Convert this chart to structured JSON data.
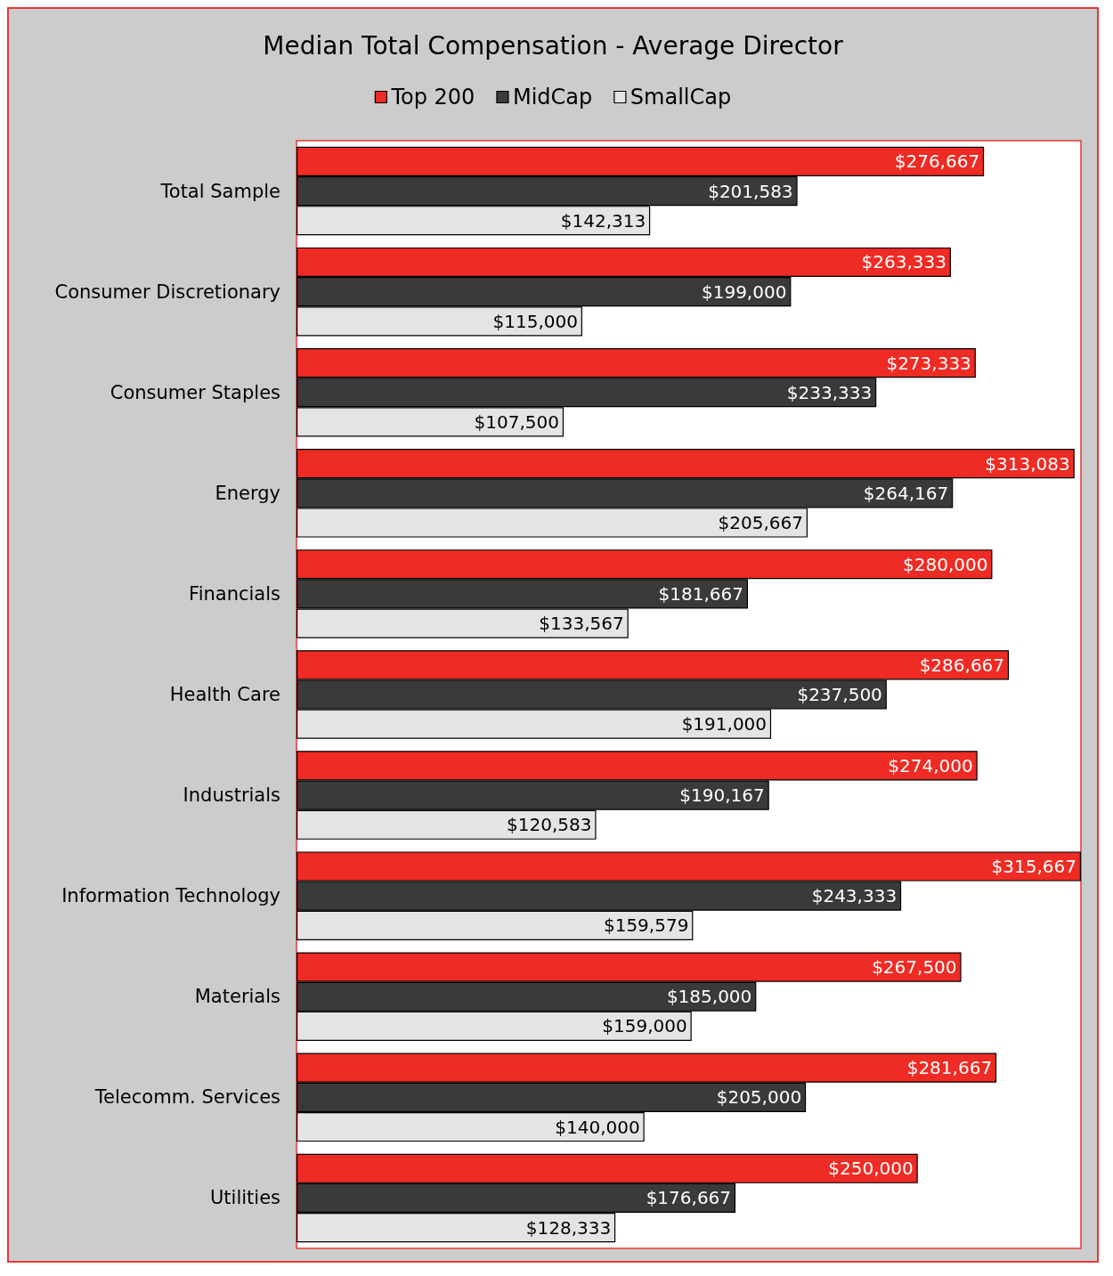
{
  "chart_data": {
    "type": "bar",
    "orientation": "horizontal",
    "title": "Median Total Compensation - Average Director",
    "categories": [
      "Total Sample",
      "Consumer Discretionary",
      "Consumer Staples",
      "Energy",
      "Financials",
      "Health Care",
      "Industrials",
      "Information Technology",
      "Materials",
      "Telecomm. Services",
      "Utilities"
    ],
    "series": [
      {
        "name": "Top 200",
        "color": "#ee2b24",
        "values": [
          276667,
          263333,
          273333,
          313083,
          280000,
          286667,
          274000,
          315667,
          267500,
          281667,
          250000
        ],
        "value_labels": [
          "$276,667",
          "$263,333",
          "$273,333",
          "$313,083",
          "$280,000",
          "$286,667",
          "$274,000",
          "$315,667",
          "$267,500",
          "$281,667",
          "$250,000"
        ]
      },
      {
        "name": "MidCap",
        "color": "#3a3a3a",
        "values": [
          201583,
          199000,
          233333,
          264167,
          181667,
          237500,
          190167,
          243333,
          185000,
          205000,
          176667
        ],
        "value_labels": [
          "$201,583",
          "$199,000",
          "$233,333",
          "$264,167",
          "$181,667",
          "$237,500",
          "$190,167",
          "$243,333",
          "$185,000",
          "$205,000",
          "$176,667"
        ]
      },
      {
        "name": "SmallCap",
        "color": "#e4e4e4",
        "values": [
          142313,
          115000,
          107500,
          205667,
          133567,
          191000,
          120583,
          159579,
          159000,
          140000,
          128333
        ],
        "value_labels": [
          "$142,313",
          "$115,000",
          "$107,500",
          "$205,667",
          "$133,567",
          "$191,000",
          "$120,583",
          "$159,579",
          "$159,000",
          "$140,000",
          "$128,333"
        ]
      }
    ],
    "legend": "top",
    "tick_labels": "y"
  }
}
